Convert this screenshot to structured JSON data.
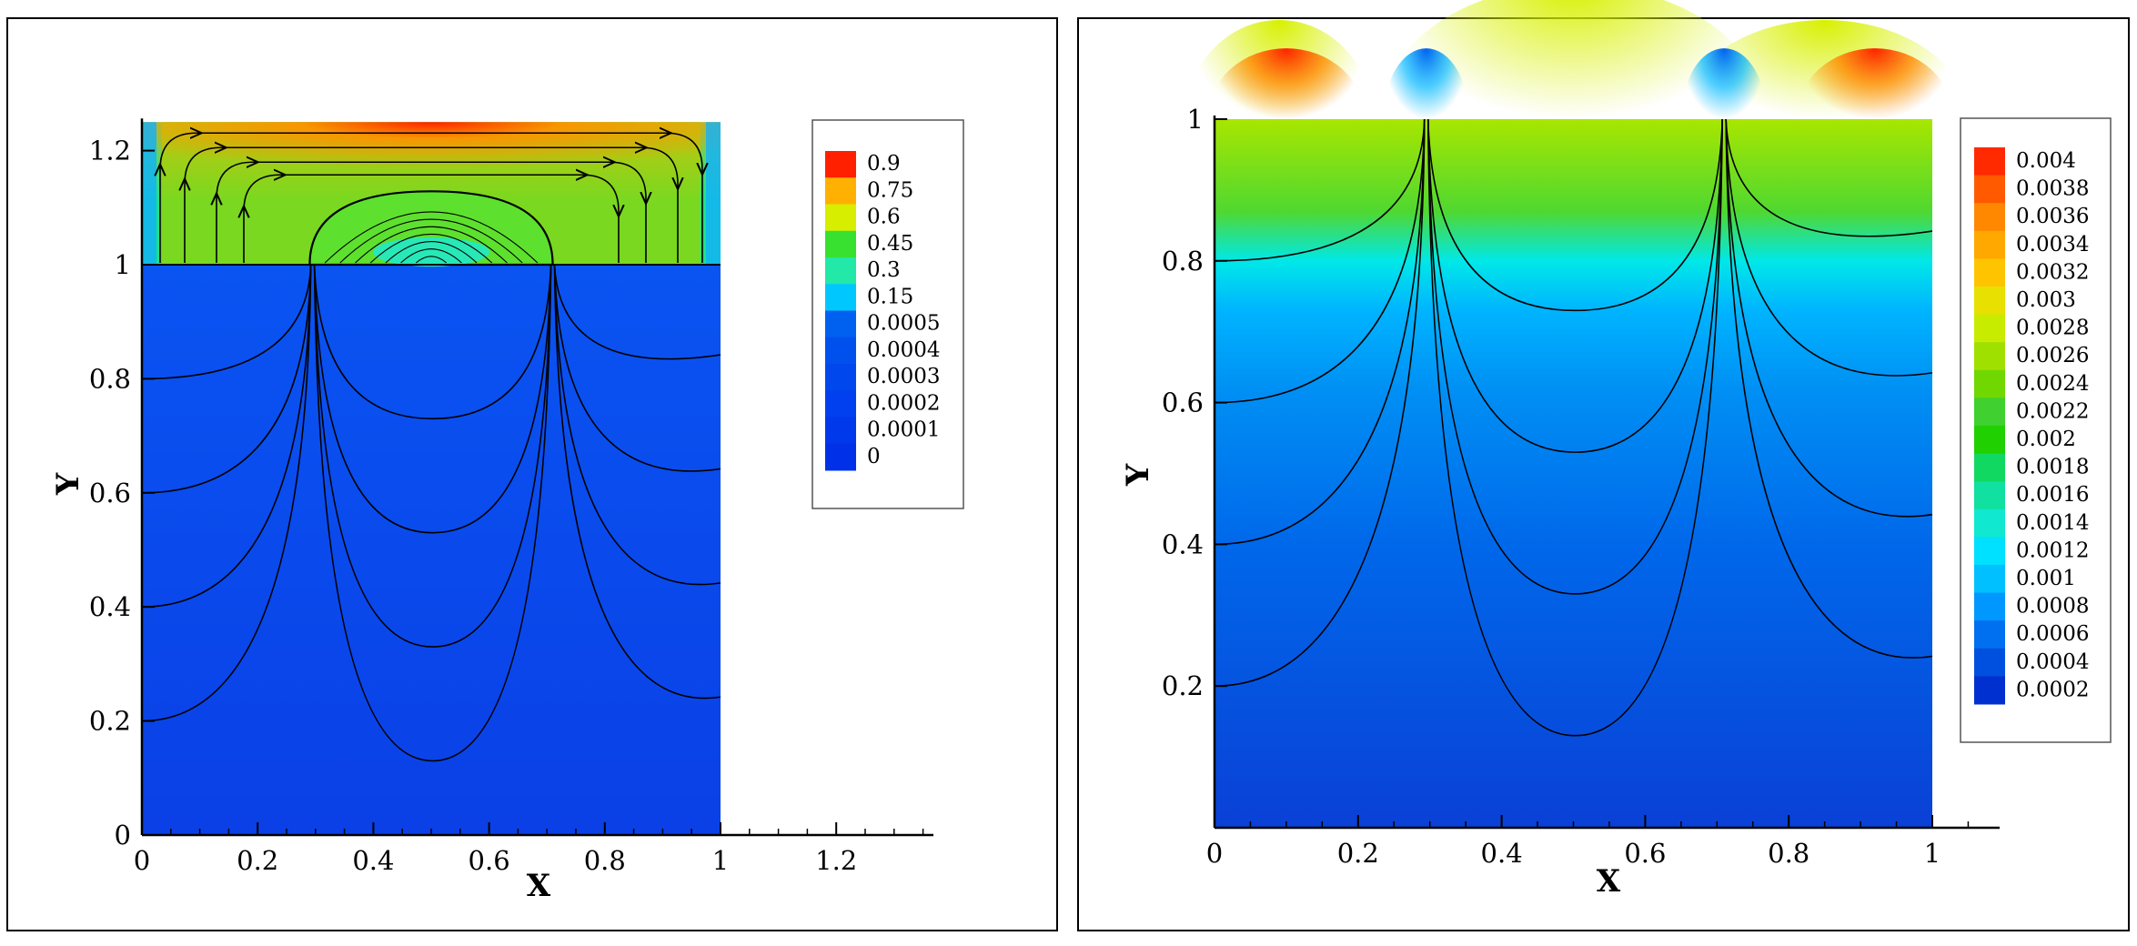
{
  "chart_data": [
    {
      "type": "heatmap",
      "title": "",
      "xlabel": "X",
      "ylabel": "Y",
      "xlim": [
        0,
        1.4
      ],
      "ylim": [
        0,
        1.25
      ],
      "x_ticks": [
        "0",
        "0.2",
        "0.4",
        "0.6",
        "0.8",
        "1",
        "1.2"
      ],
      "x_tick_values": [
        0,
        0.2,
        0.4,
        0.6,
        0.8,
        1,
        1.2
      ],
      "y_ticks": [
        "0",
        "0.2",
        "0.4",
        "0.6",
        "0.8",
        "1",
        "1.2"
      ],
      "y_tick_values": [
        0,
        0.2,
        0.4,
        0.6,
        0.8,
        1,
        1.2
      ],
      "field_domain": {
        "x": [
          0,
          1
        ],
        "y": [
          0,
          1.25
        ]
      },
      "interface_y": 1,
      "droplet": {
        "center_x": 0.5,
        "half_width": 0.21,
        "top_y": 1.1
      },
      "streamline_nodes_x": [
        0.295,
        0.71
      ],
      "streamline_start_y": [
        0.2,
        0.4,
        0.6,
        0.8
      ],
      "legend": {
        "labels": [
          "0.9",
          "0.75",
          "0.6",
          "0.45",
          "0.3",
          "0.15",
          "0.0005",
          "0.0004",
          "0.0003",
          "0.0002",
          "0.0001",
          "0"
        ],
        "colors": [
          "#ff2000",
          "#ffb000",
          "#d8ee00",
          "#38e030",
          "#22e8a8",
          "#00c8ff",
          "#0060f0",
          "#0050ee",
          "#0048ee",
          "#0040ee",
          "#0038ec",
          "#0030e8"
        ]
      },
      "grid": false
    },
    {
      "type": "heatmap",
      "title": "",
      "xlabel": "X",
      "ylabel": "Y",
      "xlim": [
        0,
        1.1
      ],
      "ylim": [
        0,
        1
      ],
      "x_ticks": [
        "0",
        "0.2",
        "0.4",
        "0.6",
        "0.8",
        "1"
      ],
      "x_tick_values": [
        0,
        0.2,
        0.4,
        0.6,
        0.8,
        1
      ],
      "y_ticks": [
        "0.2",
        "0.4",
        "0.6",
        "0.8",
        "1"
      ],
      "y_tick_values": [
        0.2,
        0.4,
        0.6,
        0.8,
        1
      ],
      "field_domain": {
        "x": [
          0,
          1
        ],
        "y": [
          0,
          1
        ]
      },
      "streamline_nodes_x": [
        0.295,
        0.71
      ],
      "streamline_start_y": [
        0.2,
        0.4,
        0.6,
        0.8
      ],
      "legend": {
        "labels": [
          "0.004",
          "0.0038",
          "0.0036",
          "0.0034",
          "0.0032",
          "0.003",
          "0.0028",
          "0.0026",
          "0.0024",
          "0.0022",
          "0.002",
          "0.0018",
          "0.0016",
          "0.0014",
          "0.0012",
          "0.001",
          "0.0008",
          "0.0006",
          "0.0004",
          "0.0002"
        ],
        "colors": [
          "#ff2a00",
          "#ff5a00",
          "#ff8800",
          "#ffa800",
          "#ffc400",
          "#e8e000",
          "#c8ec00",
          "#a0e000",
          "#70d800",
          "#40d030",
          "#20d000",
          "#10d860",
          "#10e0a0",
          "#10e8d0",
          "#00e0ff",
          "#00c0ff",
          "#0098ff",
          "#0070f0",
          "#0050e0",
          "#0030d0"
        ]
      },
      "grid": false
    }
  ]
}
